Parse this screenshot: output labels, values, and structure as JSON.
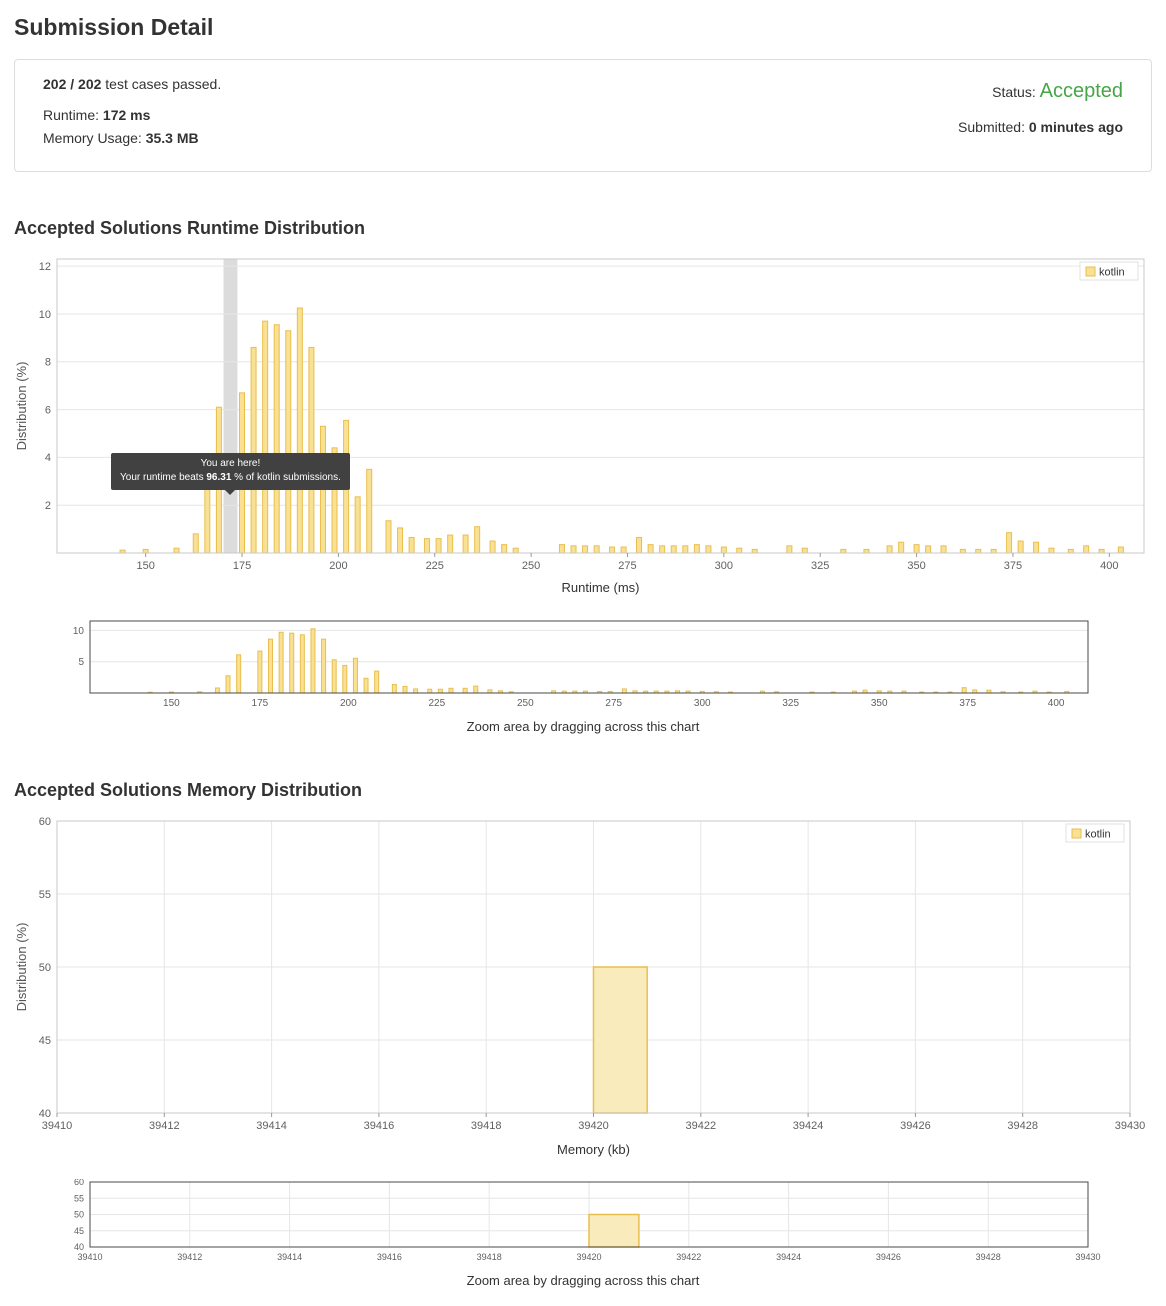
{
  "page": {
    "title": "Submission Detail"
  },
  "summary": {
    "passed_strong": "202 / 202",
    "passed_rest": "test cases passed.",
    "runtime_label": "Runtime:",
    "runtime_value": "172 ms",
    "memory_label": "Memory Usage:",
    "memory_value": "35.3 MB",
    "status_label": "Status:",
    "status_value": "Accepted",
    "submitted_label": "Submitted:",
    "submitted_value": "0 minutes ago"
  },
  "runtime_section": {
    "heading": "Accepted Solutions Runtime Distribution",
    "zoom_hint": "Zoom area by dragging across this chart"
  },
  "memory_section": {
    "heading": "Accepted Solutions Memory Distribution",
    "zoom_hint": "Zoom area by dragging across this chart"
  },
  "tooltip": {
    "line1": "You are here!",
    "beats_prefix": "Your runtime beats",
    "beats_value": "96.31",
    "beats_suffix": "% of kotlin submissions."
  },
  "colors": {
    "bar_fill": "#F9E194",
    "bar_stroke": "#E9BE4D",
    "memory_bar_fill": "#F9EBBB",
    "status_green": "#47A447",
    "highlight_band": "#DCDCDC",
    "grid": "#E6E6E6",
    "tick_text": "#606060",
    "tooltip_bg": "#414141",
    "main_border": "#C8C8C8",
    "mini_border": "#4A4A4A"
  },
  "chart_data": {
    "runtime_distribution": {
      "type": "bar",
      "title": "Accepted Solutions Runtime Distribution",
      "xlabel": "Runtime (ms)",
      "ylabel": "Distribution (%)",
      "legend": "kotlin",
      "legend_position": "top-right",
      "grid": "horizontal",
      "xlim": [
        127,
        409
      ],
      "ylim_main": [
        0,
        12.3
      ],
      "ylim_mini": [
        0,
        11.5
      ],
      "xticks": [
        150,
        175,
        200,
        225,
        250,
        275,
        300,
        325,
        350,
        375,
        400
      ],
      "yticks_main": [
        2,
        4,
        6,
        8,
        10,
        12
      ],
      "yticks_mini": [
        5,
        10
      ],
      "you_are_here_ms": 172,
      "beats_percent": 96.31,
      "points": [
        [
          144,
          0.12
        ],
        [
          150,
          0.15
        ],
        [
          158,
          0.2
        ],
        [
          163,
          0.8
        ],
        [
          166,
          2.75
        ],
        [
          169,
          6.1
        ],
        [
          175,
          6.7
        ],
        [
          178,
          8.6
        ],
        [
          181,
          9.7
        ],
        [
          184,
          9.55
        ],
        [
          187,
          9.3
        ],
        [
          190,
          10.25
        ],
        [
          193,
          8.6
        ],
        [
          196,
          5.3
        ],
        [
          199,
          4.4
        ],
        [
          202,
          5.55
        ],
        [
          205,
          2.35
        ],
        [
          208,
          3.5
        ],
        [
          213,
          1.35
        ],
        [
          216,
          1.05
        ],
        [
          219,
          0.65
        ],
        [
          223,
          0.6
        ],
        [
          226,
          0.6
        ],
        [
          229,
          0.75
        ],
        [
          233,
          0.75
        ],
        [
          236,
          1.1
        ],
        [
          240,
          0.5
        ],
        [
          243,
          0.35
        ],
        [
          246,
          0.2
        ],
        [
          258,
          0.35
        ],
        [
          261,
          0.3
        ],
        [
          264,
          0.3
        ],
        [
          267,
          0.3
        ],
        [
          271,
          0.25
        ],
        [
          274,
          0.25
        ],
        [
          278,
          0.65
        ],
        [
          281,
          0.35
        ],
        [
          284,
          0.3
        ],
        [
          287,
          0.3
        ],
        [
          290,
          0.3
        ],
        [
          293,
          0.35
        ],
        [
          296,
          0.3
        ],
        [
          300,
          0.25
        ],
        [
          304,
          0.2
        ],
        [
          308,
          0.15
        ],
        [
          317,
          0.3
        ],
        [
          321,
          0.2
        ],
        [
          331,
          0.15
        ],
        [
          337,
          0.15
        ],
        [
          343,
          0.3
        ],
        [
          346,
          0.45
        ],
        [
          350,
          0.35
        ],
        [
          353,
          0.3
        ],
        [
          357,
          0.3
        ],
        [
          362,
          0.15
        ],
        [
          366,
          0.15
        ],
        [
          370,
          0.15
        ],
        [
          374,
          0.85
        ],
        [
          377,
          0.5
        ],
        [
          381,
          0.45
        ],
        [
          385,
          0.2
        ],
        [
          390,
          0.15
        ],
        [
          394,
          0.3
        ],
        [
          398,
          0.15
        ],
        [
          403,
          0.25
        ]
      ]
    },
    "memory_distribution": {
      "type": "bar",
      "title": "Accepted Solutions Memory Distribution",
      "xlabel": "Memory (kb)",
      "ylabel": "Distribution (%)",
      "legend": "kotlin",
      "legend_position": "top-right",
      "grid": "both",
      "xlim": [
        39410,
        39430
      ],
      "ylim": [
        40,
        60
      ],
      "xticks": [
        39410,
        39412,
        39414,
        39416,
        39418,
        39420,
        39422,
        39424,
        39426,
        39428,
        39430
      ],
      "yticks": [
        40,
        45,
        50,
        55,
        60
      ],
      "bars": [
        {
          "from": 39420,
          "to": 39421,
          "pct": 50
        }
      ]
    }
  }
}
